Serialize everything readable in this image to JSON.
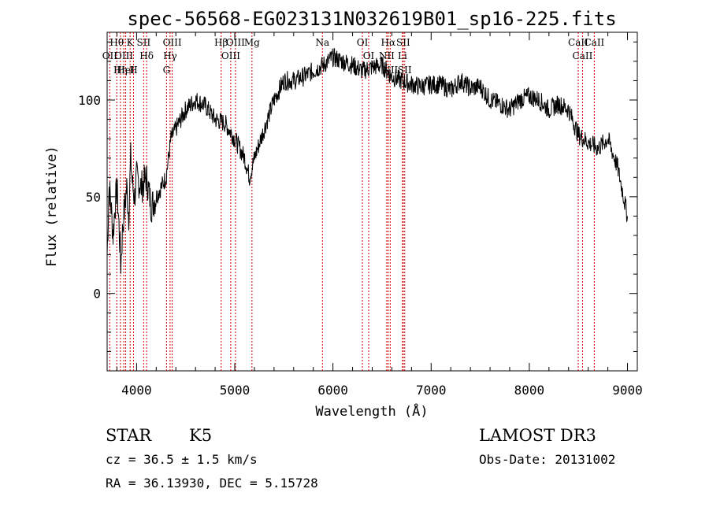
{
  "title": "spec-56568-EG023131N032619B01_sp16-225.fits",
  "chart_data": {
    "type": "line",
    "title": "spec-56568-EG023131N032619B01_sp16-225.fits",
    "xlabel": "Wavelength (Å)",
    "ylabel": "Flux (relative)",
    "xlim": [
      3700,
      9100
    ],
    "ylim": [
      -40,
      135
    ],
    "x_ticks": [
      4000,
      5000,
      6000,
      7000,
      8000,
      9000
    ],
    "y_ticks": [
      0,
      50,
      100
    ],
    "grid": false,
    "line_color": "#000000",
    "marker_color": "#cc0000",
    "series": [
      {
        "x": [
          3700,
          3720,
          3740,
          3760,
          3780,
          3800,
          3820,
          3840,
          3860,
          3880,
          3900,
          3920,
          3940,
          3960,
          3980,
          4000,
          4050,
          4100,
          4150,
          4200,
          4250,
          4300,
          4350,
          4400,
          4450,
          4500,
          4600,
          4700,
          4800,
          4900,
          5000,
          5100,
          5150,
          5200,
          5300,
          5400,
          5500,
          5600,
          5700,
          5800,
          5900,
          6000,
          6100,
          6200,
          6300,
          6400,
          6500,
          6600,
          6700,
          6800,
          6900,
          7000,
          7100,
          7200,
          7300,
          7400,
          7500,
          7600,
          7700,
          7800,
          7900,
          8000,
          8100,
          8200,
          8300,
          8400,
          8500,
          8600,
          8700,
          8800,
          8900,
          9000
        ],
        "y": [
          20,
          55,
          45,
          30,
          45,
          55,
          35,
          15,
          35,
          45,
          55,
          40,
          70,
          55,
          50,
          60,
          55,
          60,
          45,
          50,
          55,
          60,
          80,
          85,
          90,
          95,
          100,
          97,
          90,
          88,
          80,
          70,
          60,
          70,
          85,
          100,
          110,
          110,
          112,
          115,
          118,
          122,
          120,
          118,
          115,
          117,
          118,
          112,
          110,
          108,
          107,
          108,
          108,
          105,
          110,
          106,
          107,
          100,
          98,
          95,
          100,
          102,
          100,
          95,
          98,
          95,
          82,
          78,
          75,
          80,
          65,
          40
        ]
      }
    ],
    "spectral_lines": [
      {
        "label": "Hθ",
        "x": 3798
      },
      {
        "label": "OII",
        "x": 3727
      },
      {
        "label": "OIII",
        "x": 3869
      },
      {
        "label": "K",
        "x": 3934
      },
      {
        "label": "HeI",
        "x": 3889
      },
      {
        "label": "Hη",
        "x": 3835
      },
      {
        "label": "SII",
        "x": 4072
      },
      {
        "label": "H",
        "x": 3969
      },
      {
        "label": "Hδ",
        "x": 4102
      },
      {
        "label": "OIII",
        "x": 4363
      },
      {
        "label": "Hγ",
        "x": 4341
      },
      {
        "label": "G",
        "x": 4305
      },
      {
        "label": "Hβ",
        "x": 4861
      },
      {
        "label": "OIII",
        "x": 4959
      },
      {
        "label": "OIII",
        "x": 5007
      },
      {
        "label": "Mg",
        "x": 5175
      },
      {
        "label": "Na",
        "x": 5893
      },
      {
        "label": "OI",
        "x": 6300
      },
      {
        "label": "OI",
        "x": 6364
      },
      {
        "label": "Hα",
        "x": 6563
      },
      {
        "label": "NII",
        "x": 6548
      },
      {
        "label": "NII",
        "x": 6583
      },
      {
        "label": "SII",
        "x": 6716
      },
      {
        "label": "Li",
        "x": 6708
      },
      {
        "label": "SII",
        "x": 6731
      },
      {
        "label": "CaII",
        "x": 8498
      },
      {
        "label": "CaII",
        "x": 8542
      },
      {
        "label": "CaII",
        "x": 8662
      }
    ]
  },
  "info": {
    "class_label": "STAR",
    "subclass": "K5",
    "survey": "LAMOST DR3",
    "cz": "cz = 36.5 ± 1.5 km/s",
    "obs_date": "Obs-Date: 20131002",
    "radec": "RA =  36.13930, DEC =   5.15728"
  }
}
